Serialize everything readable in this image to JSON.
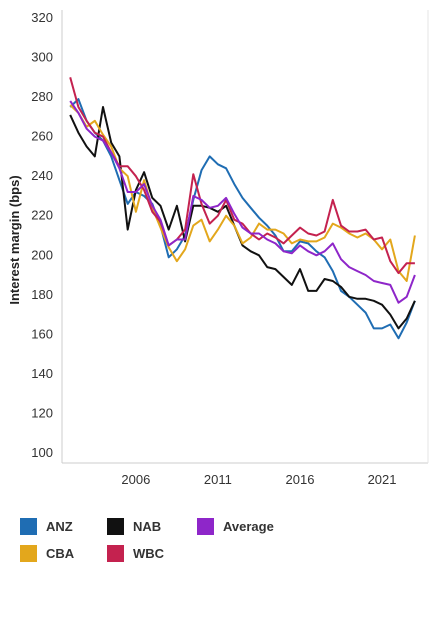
{
  "chart_data": {
    "type": "line",
    "ylabel": "Interest margin (bps)",
    "xlabel": "",
    "ylim": [
      100,
      320
    ],
    "yticks": [
      100,
      120,
      140,
      160,
      180,
      200,
      220,
      240,
      260,
      280,
      300,
      320
    ],
    "xlim": [
      2001.5,
      2023.8
    ],
    "xticks": [
      2006,
      2011,
      2016,
      2021
    ],
    "grid": false,
    "legend_position": "bottom",
    "x": [
      2002.0,
      2002.5,
      2003.0,
      2003.5,
      2004.0,
      2004.5,
      2005.0,
      2005.5,
      2006.0,
      2006.5,
      2007.0,
      2007.5,
      2008.0,
      2008.5,
      2009.0,
      2009.5,
      2010.0,
      2010.5,
      2011.0,
      2011.5,
      2012.0,
      2012.5,
      2013.0,
      2013.5,
      2014.0,
      2014.5,
      2015.0,
      2015.5,
      2016.0,
      2016.5,
      2017.0,
      2017.5,
      2018.0,
      2018.5,
      2019.0,
      2019.5,
      2020.0,
      2020.5,
      2021.0,
      2021.5,
      2022.0,
      2022.5,
      2023.0
    ],
    "series": [
      {
        "name": "ANZ",
        "color": "#1f6db3",
        "values": [
          275,
          279,
          268,
          262,
          258,
          250,
          238,
          226,
          232,
          230,
          226,
          215,
          199,
          203,
          210,
          228,
          243,
          250,
          246,
          244,
          236,
          229,
          224,
          219,
          215,
          210,
          202,
          202,
          207,
          206,
          202,
          199,
          192,
          182,
          179,
          175,
          171,
          163,
          163,
          165,
          158,
          166,
          177
        ]
      },
      {
        "name": "NAB",
        "color": "#111111",
        "values": [
          271,
          262,
          255,
          250,
          275,
          257,
          250,
          213,
          233,
          242,
          229,
          225,
          213,
          225,
          207,
          225,
          225,
          224,
          222,
          225,
          215,
          205,
          202,
          200,
          194,
          193,
          189,
          185,
          193,
          182,
          182,
          188,
          187,
          184,
          179,
          178,
          178,
          177,
          175,
          170,
          163,
          168,
          177
        ]
      },
      {
        "name": "CBA",
        "color": "#e3a71c",
        "values": [
          276,
          272,
          265,
          268,
          261,
          255,
          244,
          240,
          222,
          238,
          224,
          214,
          204,
          197,
          203,
          215,
          218,
          207,
          213,
          220,
          215,
          206,
          209,
          216,
          213,
          213,
          211,
          206,
          208,
          207,
          207,
          209,
          216,
          214,
          211,
          209,
          211,
          208,
          203,
          208,
          192,
          187,
          210
        ]
      },
      {
        "name": "WBC",
        "color": "#c4224f",
        "values": [
          290,
          275,
          268,
          262,
          260,
          252,
          245,
          245,
          240,
          233,
          222,
          217,
          205,
          208,
          213,
          241,
          226,
          216,
          220,
          228,
          218,
          216,
          211,
          208,
          211,
          209,
          206,
          210,
          214,
          211,
          210,
          212,
          228,
          215,
          212,
          212,
          213,
          208,
          209,
          197,
          191,
          196,
          196
        ]
      },
      {
        "name": "Average",
        "color": "#8e26c9",
        "values": [
          278,
          272,
          264,
          260,
          258,
          252,
          244,
          232,
          232,
          236,
          225,
          218,
          205,
          208,
          208,
          230,
          228,
          224,
          225,
          229,
          221,
          214,
          211,
          211,
          208,
          206,
          202,
          201,
          205,
          202,
          200,
          202,
          206,
          198,
          194,
          192,
          190,
          187,
          186,
          185,
          176,
          179,
          190
        ]
      }
    ]
  }
}
